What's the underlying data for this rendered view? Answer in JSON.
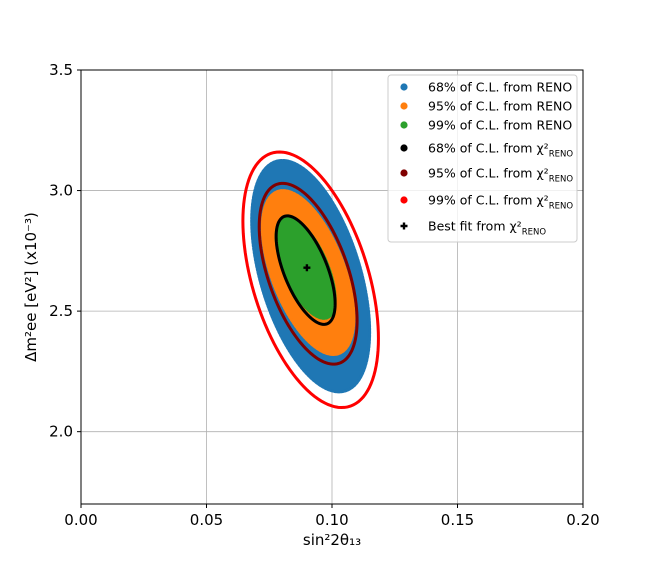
{
  "chart_data": {
    "type": "scatter",
    "xlabel": "sin²2θ₁₃",
    "ylabel": "Δm²ee [eV²] (x10⁻³)",
    "xlim": [
      0.0,
      0.2
    ],
    "ylim": [
      1.7,
      3.5
    ],
    "x_ticks": [
      "0.00",
      "0.05",
      "0.10",
      "0.15",
      "0.20"
    ],
    "y_ticks": [
      "2.0",
      "2.5",
      "3.0",
      "3.5"
    ],
    "grid": true,
    "legend_position": "top-right",
    "regions": [
      {
        "name": "68% of C.L. from RENO",
        "color": "#1f77b4",
        "kind": "filled",
        "center": [
          0.0915,
          2.645
        ],
        "x_range": [
          0.067,
          0.114
        ],
        "y_range": [
          2.17,
          3.13
        ],
        "tilt": 0.48
      },
      {
        "name": "95% of C.L. from RENO",
        "color": "#ff7f0e",
        "kind": "filled",
        "center": [
          0.0905,
          2.66
        ],
        "x_range": [
          0.0725,
          0.109
        ],
        "y_range": [
          2.33,
          3.01
        ],
        "tilt": 0.55
      },
      {
        "name": "99% of C.L. from RENO",
        "color": "#2ca02c",
        "kind": "filled",
        "center": [
          0.0895,
          2.68
        ],
        "x_range": [
          0.078,
          0.1015
        ],
        "y_range": [
          2.47,
          2.89
        ],
        "tilt": 0.62
      }
    ],
    "contours": [
      {
        "name": "68% of C.L. from χ²",
        "sub": "RENO",
        "color": "#000000",
        "center": [
          0.0895,
          2.67
        ],
        "x_range": [
          0.078,
          0.1015
        ],
        "y_range": [
          2.44,
          2.89
        ],
        "tilt": 0.62
      },
      {
        "name": "95% of C.L. from χ²",
        "sub": "RENO",
        "color": "#800000",
        "center": [
          0.0905,
          2.655
        ],
        "x_range": [
          0.0715,
          0.1105
        ],
        "y_range": [
          2.28,
          3.03
        ],
        "tilt": 0.52
      },
      {
        "name": "99% of C.L. from χ²",
        "sub": "RENO",
        "color": "#ff0000",
        "center": [
          0.0915,
          2.63
        ],
        "x_range": [
          0.0645,
          0.1185
        ],
        "y_range": [
          2.1,
          3.16
        ],
        "tilt": 0.46
      }
    ],
    "best_fit": {
      "name": "Best fit from χ²",
      "sub": "RENO",
      "x": 0.09,
      "y": 2.68
    }
  }
}
